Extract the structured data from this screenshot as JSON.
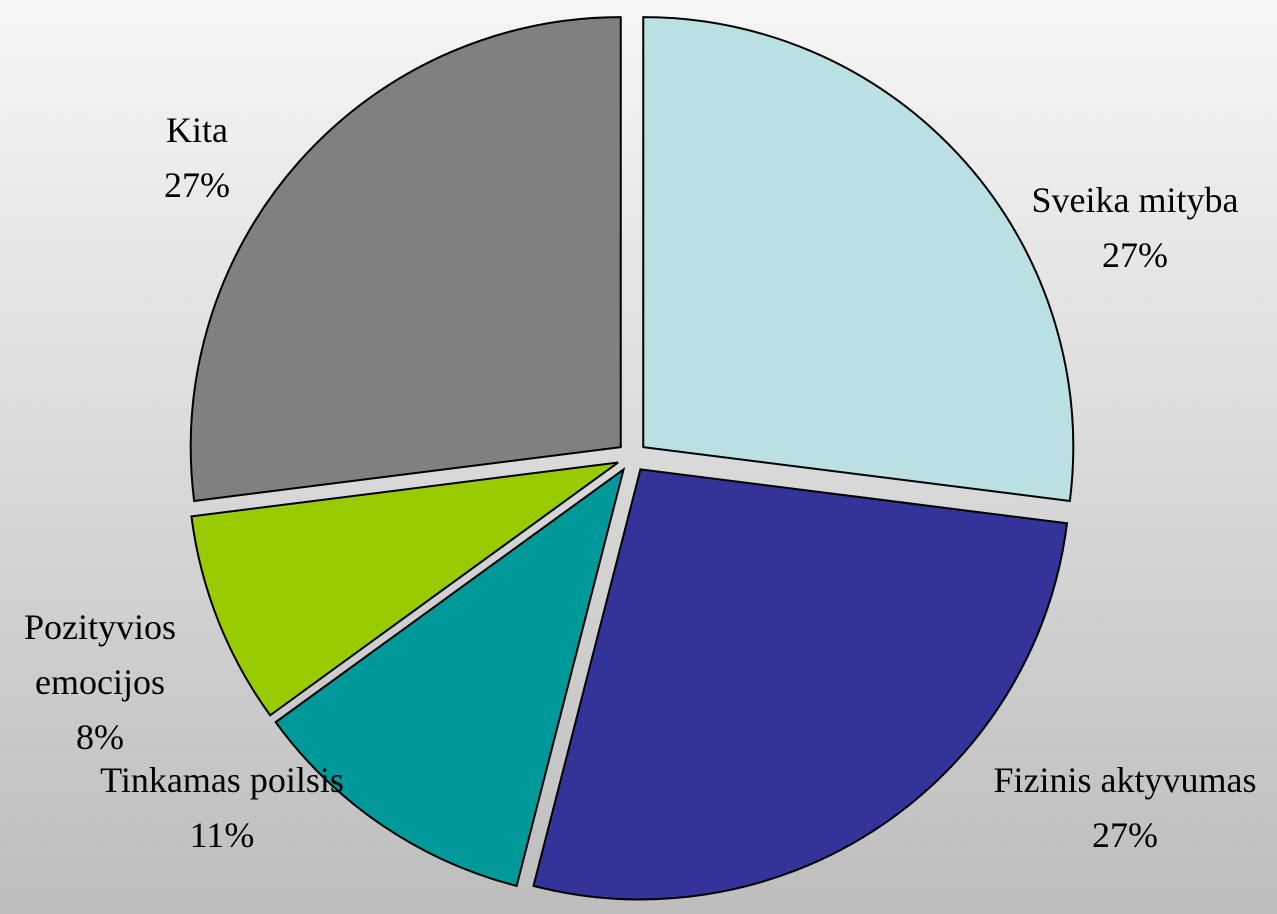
{
  "chart_data": {
    "type": "pie",
    "categories": [
      "Sveika mityba",
      "Fizinis aktyvumas",
      "Tinkamas poilsis",
      "Pozityvios emocijos",
      "Kita"
    ],
    "values": [
      27,
      27,
      11,
      8,
      27
    ],
    "value_labels": [
      "27%",
      "27%",
      "11%",
      "8%",
      "27%"
    ],
    "colors": [
      "#bbe0e3",
      "#333399",
      "#009999",
      "#99cc00",
      "#808080"
    ]
  }
}
